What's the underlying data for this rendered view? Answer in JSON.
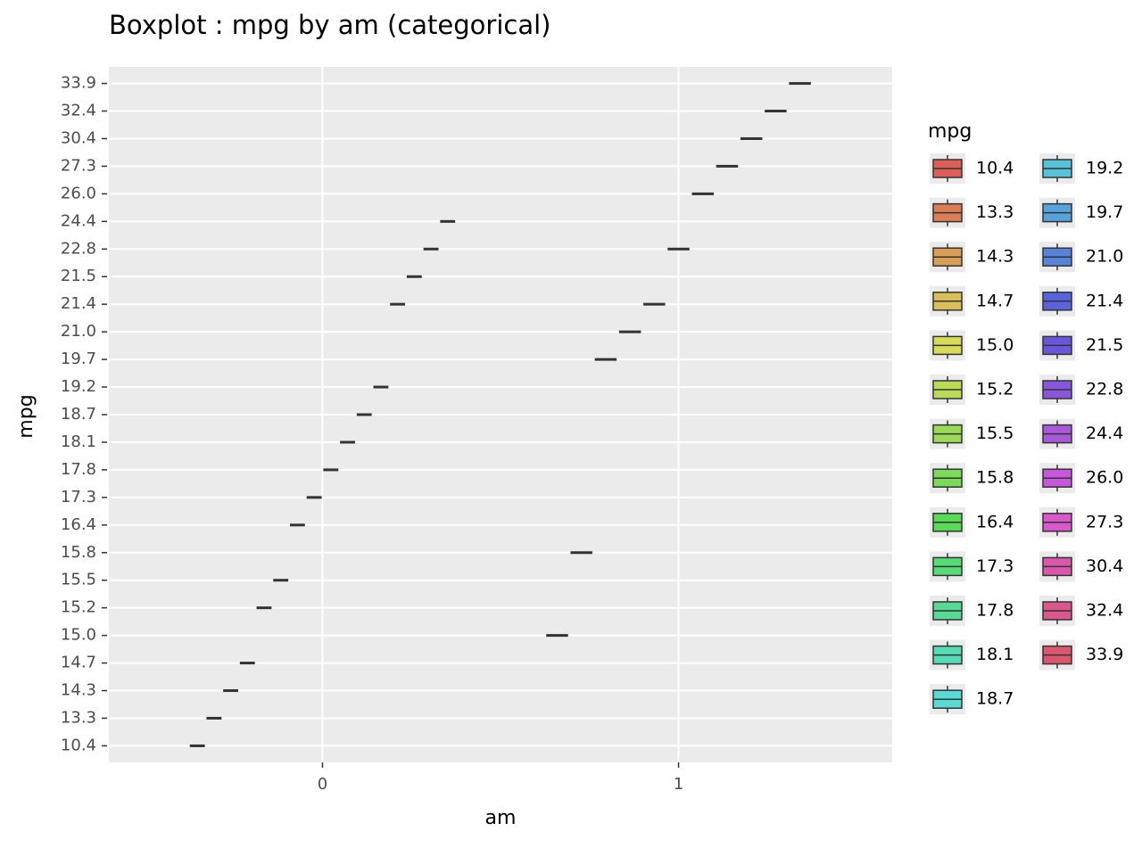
{
  "chart_data": {
    "type": "box",
    "title": "Boxplot : mpg by am (categorical)",
    "xlabel": "am",
    "ylabel": "mpg",
    "legend_title": "mpg",
    "x": [
      0,
      1
    ],
    "xlim": [
      -0.6,
      1.6
    ],
    "xticks": [
      0,
      1
    ],
    "ycategories": [
      "10.4",
      "13.3",
      "14.3",
      "14.7",
      "15.0",
      "15.2",
      "15.5",
      "15.8",
      "16.4",
      "17.3",
      "17.8",
      "18.1",
      "18.7",
      "19.2",
      "19.7",
      "21.0",
      "21.4",
      "21.5",
      "22.8",
      "24.4",
      "26.0",
      "27.3",
      "30.4",
      "32.4",
      "33.9"
    ],
    "grid": true,
    "legend": "right",
    "series": [
      {
        "name": "10.4",
        "color": "#db5f57",
        "values": [
          10.4,
          null
        ]
      },
      {
        "name": "13.3",
        "color": "#db7e57",
        "values": [
          13.3,
          null
        ]
      },
      {
        "name": "14.3",
        "color": "#db9e57",
        "values": [
          14.3,
          null
        ]
      },
      {
        "name": "14.7",
        "color": "#dbbe57",
        "values": [
          14.7,
          null
        ]
      },
      {
        "name": "15.0",
        "color": "#d9db57",
        "values": [
          null,
          15.0
        ]
      },
      {
        "name": "15.2",
        "color": "#b9db57",
        "values": [
          15.2,
          null
        ]
      },
      {
        "name": "15.5",
        "color": "#99db57",
        "values": [
          15.5,
          null
        ]
      },
      {
        "name": "15.8",
        "color": "#79db57",
        "values": [
          null,
          15.8
        ]
      },
      {
        "name": "16.4",
        "color": "#59db57",
        "values": [
          16.4,
          null
        ]
      },
      {
        "name": "17.3",
        "color": "#57db74",
        "values": [
          17.3,
          null
        ]
      },
      {
        "name": "17.8",
        "color": "#57db94",
        "values": [
          17.8,
          null
        ]
      },
      {
        "name": "18.1",
        "color": "#57dbb4",
        "values": [
          18.1,
          null
        ]
      },
      {
        "name": "18.7",
        "color": "#57dbd3",
        "values": [
          18.7,
          null
        ]
      },
      {
        "name": "19.2",
        "color": "#57c3db",
        "values": [
          19.2,
          null
        ]
      },
      {
        "name": "19.7",
        "color": "#57a3db",
        "values": [
          null,
          19.7
        ]
      },
      {
        "name": "21.0",
        "color": "#5784db",
        "values": [
          null,
          21.0
        ]
      },
      {
        "name": "21.4",
        "color": "#5764db",
        "values": [
          21.4,
          21.4
        ]
      },
      {
        "name": "21.5",
        "color": "#6957db",
        "values": [
          21.5,
          null
        ]
      },
      {
        "name": "22.8",
        "color": "#8957db",
        "values": [
          22.8,
          22.8
        ]
      },
      {
        "name": "24.4",
        "color": "#a957db",
        "values": [
          24.4,
          null
        ]
      },
      {
        "name": "26.0",
        "color": "#c957db",
        "values": [
          null,
          26.0
        ]
      },
      {
        "name": "27.3",
        "color": "#db57ce",
        "values": [
          null,
          27.3
        ]
      },
      {
        "name": "30.4",
        "color": "#db57ae",
        "values": [
          null,
          30.4
        ]
      },
      {
        "name": "32.4",
        "color": "#db578e",
        "values": [
          null,
          32.4
        ]
      },
      {
        "name": "33.9",
        "color": "#db576f",
        "values": [
          null,
          33.9
        ]
      }
    ]
  }
}
